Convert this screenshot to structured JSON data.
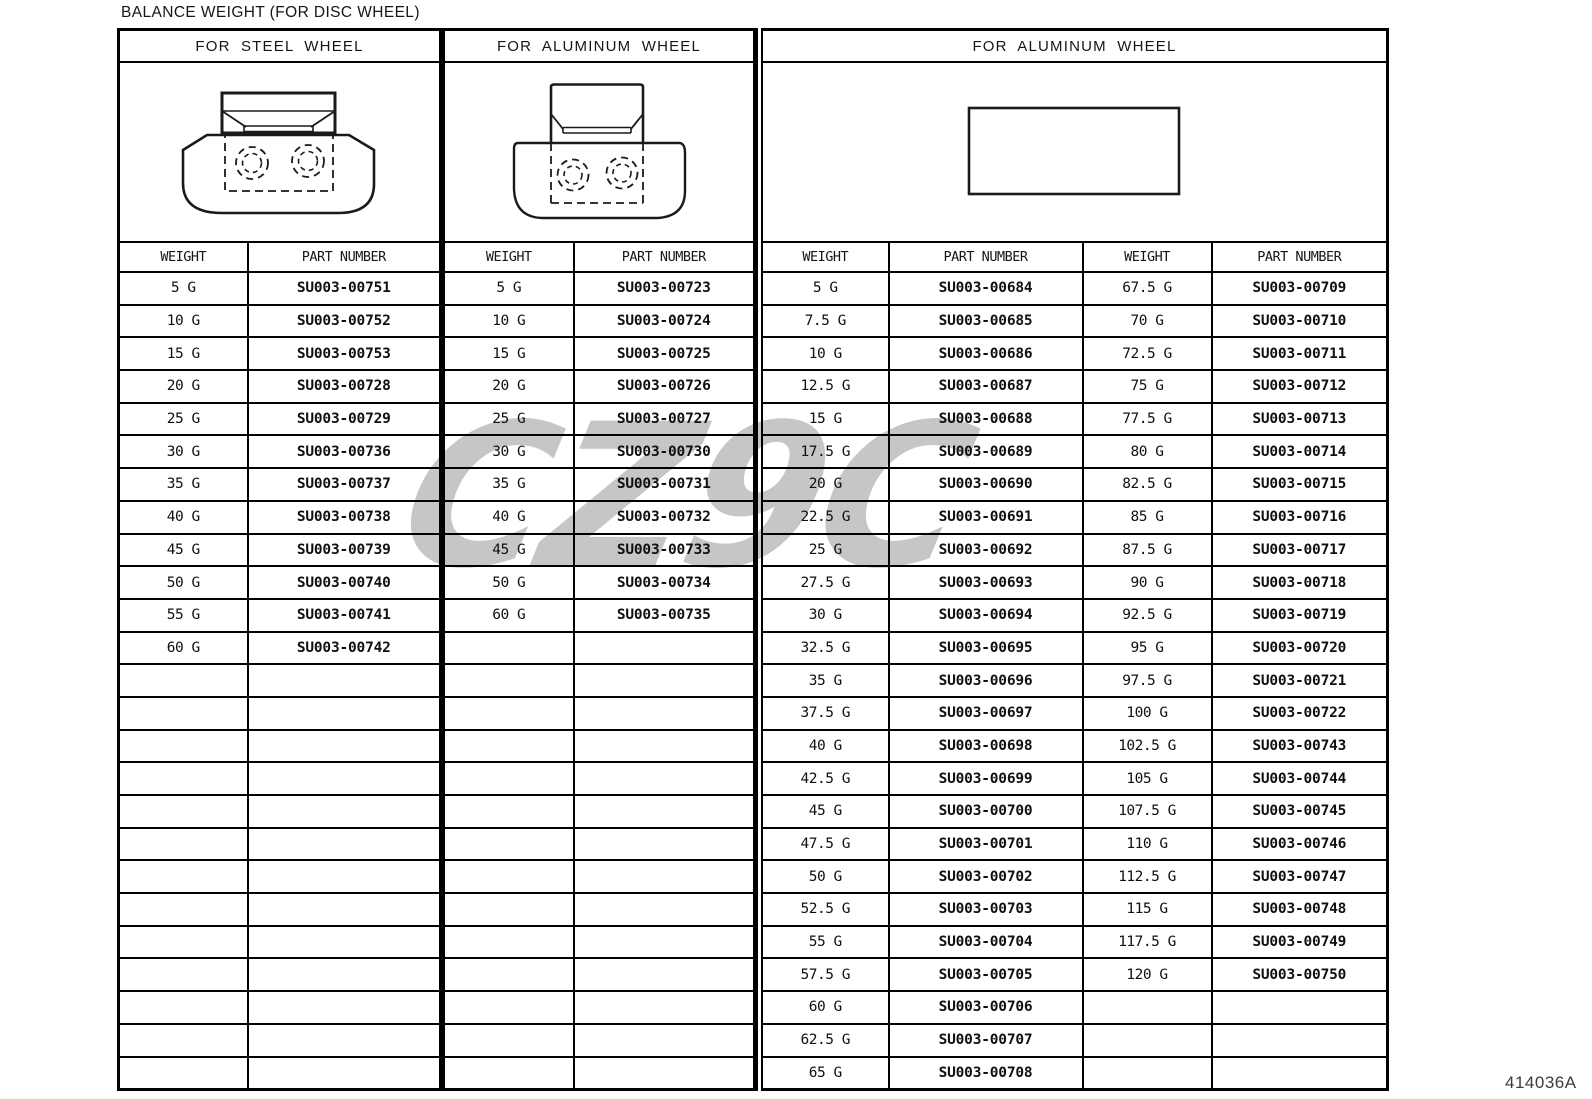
{
  "title": "BALANCE WEIGHT (FOR DISC WHEEL)",
  "figure_code": "414036A",
  "watermark": "CZ9C",
  "table_rows_total": 25,
  "sections": [
    {
      "header": "FOR STEEL WHEEL",
      "columns": [
        "WEIGHT",
        "PART NUMBER"
      ],
      "rows": [
        [
          "5 G",
          "SU003-00751"
        ],
        [
          "10 G",
          "SU003-00752"
        ],
        [
          "15 G",
          "SU003-00753"
        ],
        [
          "20 G",
          "SU003-00728"
        ],
        [
          "25 G",
          "SU003-00729"
        ],
        [
          "30 G",
          "SU003-00736"
        ],
        [
          "35 G",
          "SU003-00737"
        ],
        [
          "40 G",
          "SU003-00738"
        ],
        [
          "45 G",
          "SU003-00739"
        ],
        [
          "50 G",
          "SU003-00740"
        ],
        [
          "55 G",
          "SU003-00741"
        ],
        [
          "60 G",
          "SU003-00742"
        ]
      ]
    },
    {
      "header": "FOR ALUMINUM WHEEL",
      "columns": [
        "WEIGHT",
        "PART NUMBER"
      ],
      "rows": [
        [
          "5 G",
          "SU003-00723"
        ],
        [
          "10 G",
          "SU003-00724"
        ],
        [
          "15 G",
          "SU003-00725"
        ],
        [
          "20 G",
          "SU003-00726"
        ],
        [
          "25 G",
          "SU003-00727"
        ],
        [
          "30 G",
          "SU003-00730"
        ],
        [
          "35 G",
          "SU003-00731"
        ],
        [
          "40 G",
          "SU003-00732"
        ],
        [
          "45 G",
          "SU003-00733"
        ],
        [
          "50 G",
          "SU003-00734"
        ],
        [
          "60 G",
          "SU003-00735"
        ]
      ]
    },
    {
      "header": "FOR ALUMINUM WHEEL",
      "columns": [
        "WEIGHT",
        "PART NUMBER",
        "WEIGHT",
        "PART NUMBER"
      ],
      "rows": [
        [
          "5 G",
          "SU003-00684",
          "67.5 G",
          "SU003-00709"
        ],
        [
          "7.5 G",
          "SU003-00685",
          "70 G",
          "SU003-00710"
        ],
        [
          "10 G",
          "SU003-00686",
          "72.5 G",
          "SU003-00711"
        ],
        [
          "12.5 G",
          "SU003-00687",
          "75 G",
          "SU003-00712"
        ],
        [
          "15 G",
          "SU003-00688",
          "77.5 G",
          "SU003-00713"
        ],
        [
          "17.5 G",
          "SU003-00689",
          "80 G",
          "SU003-00714"
        ],
        [
          "20 G",
          "SU003-00690",
          "82.5 G",
          "SU003-00715"
        ],
        [
          "22.5 G",
          "SU003-00691",
          "85 G",
          "SU003-00716"
        ],
        [
          "25 G",
          "SU003-00692",
          "87.5 G",
          "SU003-00717"
        ],
        [
          "27.5 G",
          "SU003-00693",
          "90 G",
          "SU003-00718"
        ],
        [
          "30 G",
          "SU003-00694",
          "92.5 G",
          "SU003-00719"
        ],
        [
          "32.5 G",
          "SU003-00695",
          "95 G",
          "SU003-00720"
        ],
        [
          "35 G",
          "SU003-00696",
          "97.5 G",
          "SU003-00721"
        ],
        [
          "37.5 G",
          "SU003-00697",
          "100 G",
          "SU003-00722"
        ],
        [
          "40 G",
          "SU003-00698",
          "102.5 G",
          "SU003-00743"
        ],
        [
          "42.5 G",
          "SU003-00699",
          "105 G",
          "SU003-00744"
        ],
        [
          "45 G",
          "SU003-00700",
          "107.5 G",
          "SU003-00745"
        ],
        [
          "47.5 G",
          "SU003-00701",
          "110 G",
          "SU003-00746"
        ],
        [
          "50 G",
          "SU003-00702",
          "112.5 G",
          "SU003-00747"
        ],
        [
          "52.5 G",
          "SU003-00703",
          "115 G",
          "SU003-00748"
        ],
        [
          "55 G",
          "SU003-00704",
          "117.5 G",
          "SU003-00749"
        ],
        [
          "57.5 G",
          "SU003-00705",
          "120 G",
          "SU003-00750"
        ],
        [
          "60 G",
          "SU003-00706",
          "",
          ""
        ],
        [
          "62.5 G",
          "SU003-00707",
          "",
          ""
        ],
        [
          "65 G",
          "SU003-00708",
          "",
          ""
        ]
      ]
    }
  ]
}
